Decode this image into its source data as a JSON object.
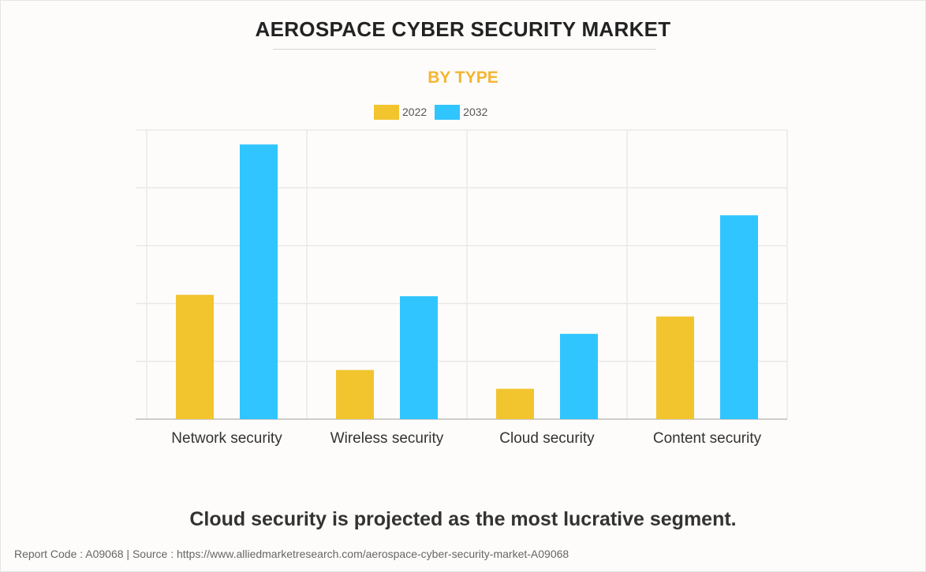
{
  "header": {
    "title": "AEROSPACE CYBER SECURITY MARKET",
    "subtitle": "BY TYPE"
  },
  "colors": {
    "accent_subtitle": "#f5b531",
    "series_2022": "#f2c42e",
    "series_2032": "#30c5ff",
    "grid": "#e9e9e9",
    "axis": "#bdbdbd"
  },
  "chart_data": {
    "type": "bar",
    "title": "AEROSPACE CYBER SECURITY MARKET",
    "subtitle": "BY TYPE",
    "categories": [
      "Network security",
      "Wireless security",
      "Cloud security",
      "Content security"
    ],
    "series": [
      {
        "name": "2022",
        "values": [
          43,
          17,
          10.5,
          35.5
        ]
      },
      {
        "name": "2032",
        "values": [
          95,
          42.5,
          29.5,
          70.5
        ]
      }
    ],
    "ylim": [
      0,
      100
    ],
    "grid": true,
    "legend_position": "top-center",
    "xlabel": "",
    "ylabel": ""
  },
  "takeaway": "Cloud security is projected as the most lucrative segment.",
  "footer": "Report Code : A09068  |  Source : https://www.alliedmarketresearch.com/aerospace-cyber-security-market-A09068"
}
